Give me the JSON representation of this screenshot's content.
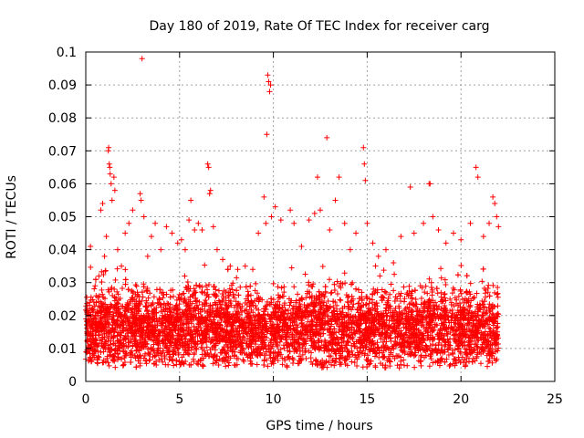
{
  "chart_data": {
    "type": "scatter",
    "title": "Day 180 of 2019, Rate Of TEC Index for receiver carg",
    "xlabel": "GPS time / hours",
    "ylabel": "ROTI / TECUs",
    "xlim": [
      0,
      25
    ],
    "ylim": [
      0,
      0.1
    ],
    "xticks": [
      0,
      5,
      10,
      15,
      20,
      25
    ],
    "xtick_labels": [
      "0",
      "5",
      "10",
      "15",
      "20",
      "25"
    ],
    "yticks": [
      0,
      0.01,
      0.02,
      0.03,
      0.04,
      0.05,
      0.06,
      0.07,
      0.08,
      0.09,
      0.1
    ],
    "ytick_labels": [
      "0",
      "0.01",
      "0.02",
      "0.03",
      "0.04",
      "0.05",
      "0.06",
      "0.07",
      "0.08",
      "0.09",
      "0.1"
    ],
    "grid": true,
    "marker": "+",
    "color": "#ff0000",
    "data_span_hours": [
      0,
      22
    ],
    "series": [
      {
        "name": "ROTI",
        "points": [
          [
            0.1,
            0.012
          ],
          [
            0.15,
            0.018
          ],
          [
            0.2,
            0.024
          ],
          [
            0.25,
            0.041
          ],
          [
            0.3,
            0.022
          ],
          [
            0.35,
            0.015
          ],
          [
            0.5,
            0.029
          ],
          [
            0.55,
            0.026
          ],
          [
            0.7,
            0.032
          ],
          [
            0.8,
            0.052
          ],
          [
            0.9,
            0.054
          ],
          [
            1.0,
            0.038
          ],
          [
            1.1,
            0.044
          ],
          [
            1.2,
            0.07
          ],
          [
            1.22,
            0.071
          ],
          [
            1.25,
            0.066
          ],
          [
            1.28,
            0.065
          ],
          [
            1.3,
            0.063
          ],
          [
            1.35,
            0.06
          ],
          [
            1.4,
            0.055
          ],
          [
            1.5,
            0.062
          ],
          [
            1.55,
            0.058
          ],
          [
            1.7,
            0.04
          ],
          [
            1.9,
            0.035
          ],
          [
            2.1,
            0.045
          ],
          [
            2.3,
            0.048
          ],
          [
            2.5,
            0.052
          ],
          [
            2.9,
            0.057
          ],
          [
            2.95,
            0.055
          ],
          [
            3.0,
            0.098
          ],
          [
            3.1,
            0.05
          ],
          [
            3.3,
            0.038
          ],
          [
            3.5,
            0.044
          ],
          [
            3.7,
            0.048
          ],
          [
            4.0,
            0.04
          ],
          [
            4.3,
            0.047
          ],
          [
            4.6,
            0.045
          ],
          [
            4.9,
            0.042
          ],
          [
            5.1,
            0.043
          ],
          [
            5.3,
            0.04
          ],
          [
            5.5,
            0.049
          ],
          [
            5.6,
            0.055
          ],
          [
            5.8,
            0.046
          ],
          [
            6.0,
            0.048
          ],
          [
            6.2,
            0.046
          ],
          [
            6.5,
            0.066
          ],
          [
            6.55,
            0.065
          ],
          [
            6.6,
            0.057
          ],
          [
            6.65,
            0.058
          ],
          [
            6.8,
            0.047
          ],
          [
            7.0,
            0.04
          ],
          [
            7.3,
            0.037
          ],
          [
            7.7,
            0.035
          ],
          [
            8.1,
            0.034
          ],
          [
            8.5,
            0.035
          ],
          [
            8.9,
            0.034
          ],
          [
            9.2,
            0.045
          ],
          [
            9.5,
            0.056
          ],
          [
            9.6,
            0.048
          ],
          [
            9.65,
            0.075
          ],
          [
            9.7,
            0.093
          ],
          [
            9.75,
            0.091
          ],
          [
            9.8,
            0.088
          ],
          [
            9.85,
            0.09
          ],
          [
            9.9,
            0.05
          ],
          [
            10.1,
            0.053
          ],
          [
            10.4,
            0.049
          ],
          [
            10.9,
            0.052
          ],
          [
            11.1,
            0.048
          ],
          [
            11.5,
            0.041
          ],
          [
            11.9,
            0.049
          ],
          [
            12.2,
            0.051
          ],
          [
            12.35,
            0.062
          ],
          [
            12.5,
            0.052
          ],
          [
            12.85,
            0.074
          ],
          [
            13.0,
            0.046
          ],
          [
            13.3,
            0.055
          ],
          [
            13.5,
            0.062
          ],
          [
            13.8,
            0.048
          ],
          [
            14.1,
            0.04
          ],
          [
            14.4,
            0.045
          ],
          [
            14.8,
            0.071
          ],
          [
            14.85,
            0.066
          ],
          [
            14.9,
            0.061
          ],
          [
            15.0,
            0.048
          ],
          [
            15.3,
            0.042
          ],
          [
            15.6,
            0.038
          ],
          [
            16.0,
            0.04
          ],
          [
            16.4,
            0.036
          ],
          [
            16.8,
            0.044
          ],
          [
            17.3,
            0.059
          ],
          [
            17.5,
            0.045
          ],
          [
            18.0,
            0.048
          ],
          [
            18.3,
            0.06
          ],
          [
            18.35,
            0.06
          ],
          [
            18.5,
            0.05
          ],
          [
            18.8,
            0.046
          ],
          [
            19.2,
            0.042
          ],
          [
            19.6,
            0.045
          ],
          [
            20.0,
            0.043
          ],
          [
            20.5,
            0.048
          ],
          [
            20.8,
            0.065
          ],
          [
            20.9,
            0.062
          ],
          [
            21.2,
            0.044
          ],
          [
            21.5,
            0.048
          ],
          [
            21.7,
            0.056
          ],
          [
            21.8,
            0.054
          ],
          [
            21.9,
            0.05
          ],
          [
            22.0,
            0.047
          ]
        ]
      }
    ]
  }
}
